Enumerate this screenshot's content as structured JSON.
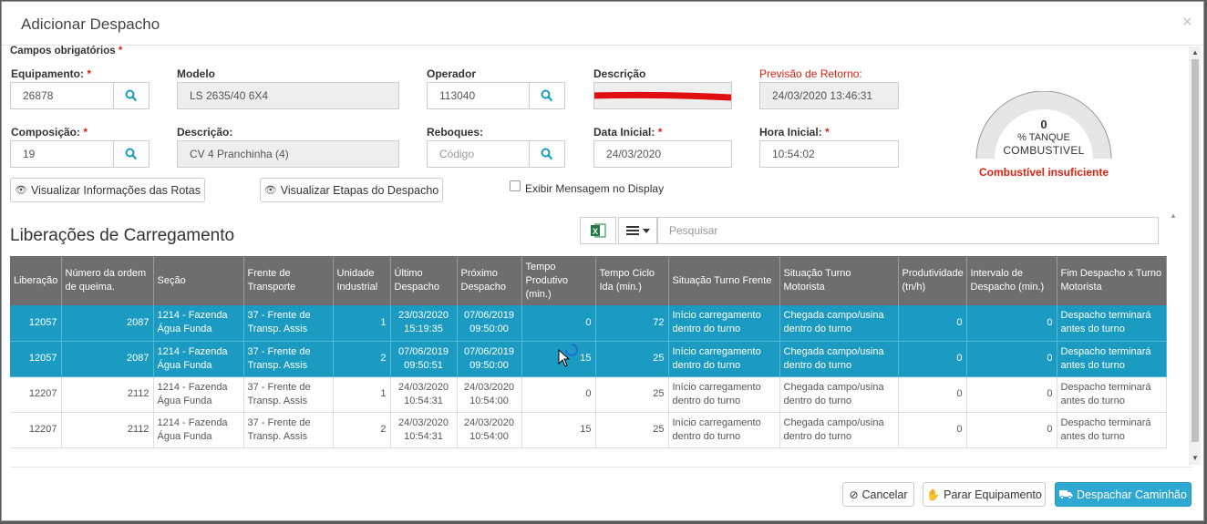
{
  "modal": {
    "title": "Adicionar Despacho",
    "close_glyph": "×"
  },
  "form": {
    "required_title": "Campos obrigatórios",
    "required_mark": "*",
    "equipamento": {
      "label": "Equipamento:",
      "value": "26878"
    },
    "modelo": {
      "label": "Modelo",
      "value": "LS 2635/40 6X4"
    },
    "operador": {
      "label": "Operador",
      "value": "113040"
    },
    "descricao_top": {
      "label": "Descrição"
    },
    "previsao": {
      "label": "Previsão de Retorno:",
      "value": "24/03/2020 13:46:31"
    },
    "composicao": {
      "label": "Composição:",
      "value": "19"
    },
    "descricao": {
      "label": "Descrição:",
      "value": "CV 4 Pranchinha (4)"
    },
    "reboques": {
      "label": "Reboques:",
      "placeholder": "Código"
    },
    "data_inicial": {
      "label": "Data Inicial:",
      "value": "24/03/2020"
    },
    "hora_inicial": {
      "label": "Hora Inicial:",
      "value": "10:54:02"
    },
    "btn_rotas": "Visualizar Informações das Rotas",
    "btn_etapas": "Visualizar Etapas do Despacho",
    "chk_display": "Exibir Mensagem no Display"
  },
  "gauge": {
    "value": "0",
    "unit1": "% TANQUE",
    "unit2": "COMBUSTIVEL",
    "level": 0,
    "warning": "Combustível insuficiente"
  },
  "section": {
    "title": "Liberações de Carregamento",
    "search_placeholder": "Pesquisar"
  },
  "table": {
    "headers": [
      "Liberação",
      "Número da ordem de queima.",
      "Seção",
      "Frente de Transporte",
      "Unidade Industrial",
      "Último Despacho",
      "Próximo Despacho",
      "Tempo Produtivo (min.)",
      "Tempo Ciclo Ida (min.)",
      "Situação Turno Frente",
      "Situação Turno Motorista",
      "Produtividade (tn/h)",
      "Intervalo de Despacho (min.)",
      "Fim Despacho x Turno Motorista"
    ],
    "rows": [
      [
        "12057",
        "2087",
        "1214 - Fazenda Água Funda",
        "37 - Frente de Transp. Assis",
        "1",
        "23/03/2020 15:19:35",
        "07/06/2019 09:50:00",
        "0",
        "72",
        "Início carregamento dentro do turno",
        "Chegada campo/usina dentro do turno",
        "0",
        "0",
        "Despacho terminará antes do turno"
      ],
      [
        "12057",
        "2087",
        "1214 - Fazenda Água Funda",
        "37 - Frente de Transp. Assis",
        "2",
        "07/06/2019 09:50:51",
        "07/06/2019 09:50:00",
        "15",
        "25",
        "Início carregamento dentro do turno",
        "Chegada campo/usina dentro do turno",
        "0",
        "0",
        "Despacho terminará antes do turno"
      ],
      [
        "12207",
        "2112",
        "1214 - Fazenda Água Funda",
        "37 - Frente de Transp. Assis",
        "1",
        "24/03/2020 10:54:31",
        "24/03/2020 10:54:00",
        "0",
        "25",
        "Início carregamento dentro do turno",
        "Chegada campo/usina dentro do turno",
        "0",
        "0",
        "Despacho terminará antes do turno"
      ],
      [
        "12207",
        "2112",
        "1214 - Fazenda Água Funda",
        "37 - Frente de Transp. Assis",
        "2",
        "24/03/2020 10:54:31",
        "24/03/2020 10:54:00",
        "15",
        "25",
        "Início carregamento dentro do turno",
        "Chegada campo/usina dentro do turno",
        "0",
        "0",
        "Despacho terminará antes do turno"
      ]
    ]
  },
  "footer": {
    "cancel": "Cancelar",
    "stop": "Parar Equipamento",
    "dispatch": "Despachar Caminhão"
  },
  "colors": {
    "primary": "#1b9bc2",
    "danger": "#d9230f",
    "header_bg": "#6e6e6e"
  }
}
